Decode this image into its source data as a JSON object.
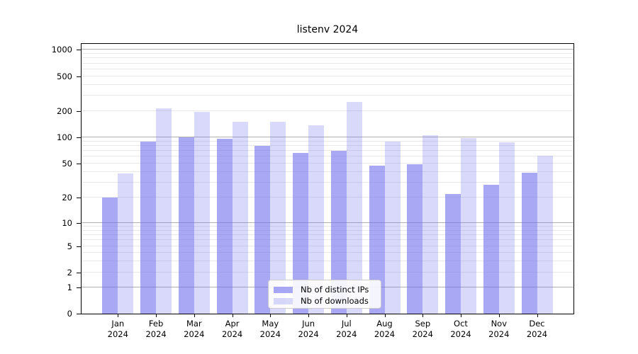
{
  "chart_data": {
    "type": "bar",
    "title": "listenv 2024",
    "categories": [
      "Jan 2024",
      "Feb 2024",
      "Mar 2024",
      "Apr 2024",
      "May 2024",
      "Jun 2024",
      "Jul 2024",
      "Aug 2024",
      "Sep 2024",
      "Oct 2024",
      "Nov 2024",
      "Dec 2024"
    ],
    "series": [
      {
        "name": "Nb of distinct IPs",
        "color": "#6e6eee",
        "alpha": 0.6,
        "values": [
          20,
          90,
          101,
          97,
          80,
          66,
          70,
          47,
          49,
          22,
          28,
          39
        ]
      },
      {
        "name": "Nb of downloads",
        "color": "#6e6eee",
        "alpha": 0.26,
        "values": [
          38,
          215,
          198,
          152,
          150,
          138,
          255,
          90,
          105,
          98,
          87,
          62
        ]
      }
    ],
    "y_ticks": [
      0,
      1,
      2,
      5,
      10,
      20,
      50,
      100,
      200,
      500,
      1000
    ],
    "y_scale": "symlog",
    "ylim": [
      0,
      1200
    ],
    "xlabel": "",
    "ylabel": "",
    "grid": true,
    "legend_position": "lower center",
    "colors": {
      "bar_ips_rendered": "#a9a9f1",
      "bar_downloads_rendered": "#dadaf8",
      "major_gridline": "#b0b0b0",
      "minor_gridline": "#e8e8e8",
      "axis": "#000000",
      "legend_border": "#cccccc"
    }
  }
}
